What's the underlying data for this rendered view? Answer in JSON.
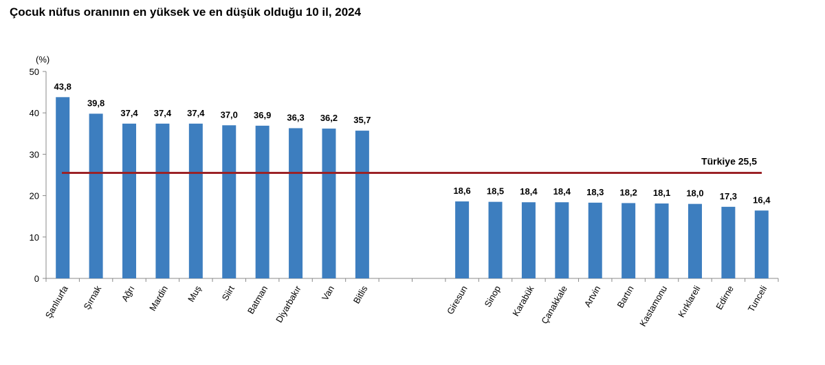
{
  "chart_data": {
    "type": "bar",
    "title": "Çocuk nüfus oranının en yüksek ve en düşük olduğu 10 il, 2024",
    "ylabel": "(%)",
    "xlabel": "",
    "ylim": [
      0,
      50
    ],
    "yticks": [
      "0",
      "10",
      "20",
      "30",
      "40",
      "50"
    ],
    "categories": [
      "Şanlıurfa",
      "Şırnak",
      "Ağrı",
      "Mardin",
      "Muş",
      "Siirt",
      "Batman",
      "Diyarbakır",
      "Van",
      "Bitlis",
      "",
      "",
      "Giresun",
      "Sinop",
      "Karabük",
      "Çanakkale",
      "Artvin",
      "Bartın",
      "Kastamonu",
      "Kırklareli",
      "Edirne",
      "Tunceli"
    ],
    "values": [
      43.8,
      39.8,
      37.4,
      37.4,
      37.4,
      37.0,
      36.9,
      36.3,
      36.2,
      35.7,
      null,
      null,
      18.6,
      18.5,
      18.4,
      18.4,
      18.3,
      18.2,
      18.1,
      18.0,
      17.3,
      16.4
    ],
    "data_labels": [
      "43,8",
      "39,8",
      "37,4",
      "37,4",
      "37,4",
      "37,0",
      "36,9",
      "36,3",
      "36,2",
      "35,7",
      "",
      "",
      "18,6",
      "18,5",
      "18,4",
      "18,4",
      "18,3",
      "18,2",
      "18,1",
      "18,0",
      "17,3",
      "16,4"
    ],
    "reference_line": {
      "label": "Türkiye",
      "value": 25.5,
      "value_label": "25,5"
    },
    "bar_color": "#3d7ebf",
    "reference_color": "#9b2226",
    "grid": false,
    "legend": "none"
  }
}
